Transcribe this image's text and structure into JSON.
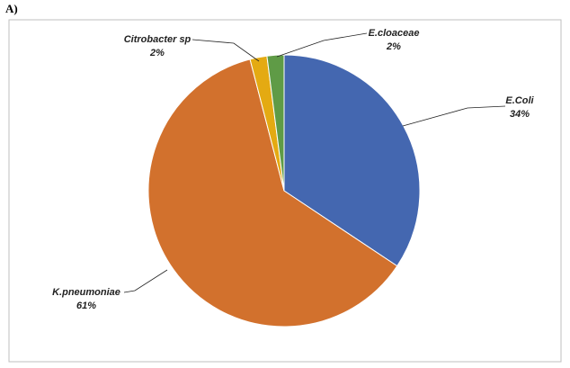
{
  "panel_label": "A)",
  "chart_data": {
    "type": "pie",
    "categories": [
      "E.Coli",
      "K.pneumoniae",
      "Citrobacter sp",
      "E.cloaceae"
    ],
    "values": [
      34,
      61,
      2,
      2
    ],
    "value_labels": [
      "34%",
      "61%",
      "2%",
      "2%"
    ],
    "colors": [
      "#4467b0",
      "#d2712d",
      "#e4aa12",
      "#5f9b46"
    ]
  }
}
